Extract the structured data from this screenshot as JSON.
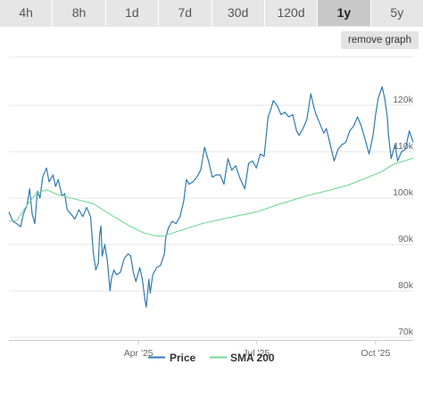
{
  "tabs": [
    {
      "label": "4h",
      "active": false
    },
    {
      "label": "8h",
      "active": false
    },
    {
      "label": "1d",
      "active": false
    },
    {
      "label": "7d",
      "active": false
    },
    {
      "label": "30d",
      "active": false
    },
    {
      "label": "120d",
      "active": false
    },
    {
      "label": "1y",
      "active": true
    },
    {
      "label": "5y",
      "active": false
    }
  ],
  "remove_graph_label": "remove graph",
  "colors": {
    "price": "#2f7ab0",
    "sma": "#72d897",
    "active_tab_bg": "#c8c8c8",
    "tab_bg": "#e6e6e6"
  },
  "chart_data": {
    "type": "line",
    "title": "",
    "xlabel": "",
    "ylabel": "",
    "x_range": [
      "2024-12-22",
      "2025-10-30"
    ],
    "ylim": [
      70,
      125
    ],
    "grid": true,
    "y_ticks": [
      {
        "value": 120,
        "label": "120k"
      },
      {
        "value": 110,
        "label": "110k"
      },
      {
        "value": 100,
        "label": "100k"
      },
      {
        "value": 90,
        "label": "90k"
      },
      {
        "value": 80,
        "label": "80k"
      },
      {
        "value": 70,
        "label": "70k"
      }
    ],
    "x_ticks": [
      {
        "date": "2025-04-01",
        "label": "Apr '25"
      },
      {
        "date": "2025-07-01",
        "label": "Jul '25"
      },
      {
        "date": "2025-10-01",
        "label": "Oct '25"
      }
    ],
    "legend_position": "bottom-center",
    "series": [
      {
        "name": "Price",
        "color": "#2f7ab0",
        "x": [
          "2024-12-22",
          "2024-12-25",
          "2024-12-28",
          "2024-12-31",
          "2025-01-02",
          "2025-01-05",
          "2025-01-07",
          "2025-01-09",
          "2025-01-11",
          "2025-01-13",
          "2025-01-15",
          "2025-01-17",
          "2025-01-20",
          "2025-01-22",
          "2025-01-25",
          "2025-01-27",
          "2025-01-29",
          "2025-02-01",
          "2025-02-03",
          "2025-02-05",
          "2025-02-08",
          "2025-02-11",
          "2025-02-14",
          "2025-02-17",
          "2025-02-20",
          "2025-02-23",
          "2025-02-25",
          "2025-02-27",
          "2025-03-01",
          "2025-03-02",
          "2025-03-03",
          "2025-03-04",
          "2025-03-06",
          "2025-03-08",
          "2025-03-10",
          "2025-03-11",
          "2025-03-13",
          "2025-03-15",
          "2025-03-18",
          "2025-03-21",
          "2025-03-24",
          "2025-03-26",
          "2025-03-28",
          "2025-03-30",
          "2025-04-02",
          "2025-04-04",
          "2025-04-06",
          "2025-04-07",
          "2025-04-09",
          "2025-04-10",
          "2025-04-12",
          "2025-04-15",
          "2025-04-18",
          "2025-04-21",
          "2025-04-22",
          "2025-04-24",
          "2025-04-27",
          "2025-04-30",
          "2025-05-03",
          "2025-05-06",
          "2025-05-08",
          "2025-05-10",
          "2025-05-13",
          "2025-05-16",
          "2025-05-19",
          "2025-05-22",
          "2025-05-25",
          "2025-05-28",
          "2025-05-31",
          "2025-06-03",
          "2025-06-06",
          "2025-06-09",
          "2025-06-12",
          "2025-06-15",
          "2025-06-18",
          "2025-06-22",
          "2025-06-25",
          "2025-06-28",
          "2025-07-01",
          "2025-07-04",
          "2025-07-07",
          "2025-07-10",
          "2025-07-12",
          "2025-07-14",
          "2025-07-17",
          "2025-07-20",
          "2025-07-23",
          "2025-07-26",
          "2025-07-29",
          "2025-08-01",
          "2025-08-03",
          "2025-08-06",
          "2025-08-09",
          "2025-08-12",
          "2025-08-14",
          "2025-08-16",
          "2025-08-19",
          "2025-08-22",
          "2025-08-24",
          "2025-08-27",
          "2025-08-30",
          "2025-09-02",
          "2025-09-05",
          "2025-09-08",
          "2025-09-11",
          "2025-09-14",
          "2025-09-17",
          "2025-09-20",
          "2025-09-23",
          "2025-09-26",
          "2025-09-29",
          "2025-10-01",
          "2025-10-03",
          "2025-10-06",
          "2025-10-08",
          "2025-10-10",
          "2025-10-11",
          "2025-10-13",
          "2025-10-16",
          "2025-10-18",
          "2025-10-21",
          "2025-10-24",
          "2025-10-27",
          "2025-10-30"
        ],
        "values": [
          97.0,
          95.0,
          94.5,
          93.8,
          96.5,
          98.5,
          102.0,
          96.5,
          94.5,
          101.5,
          100.0,
          104.5,
          106.5,
          103.5,
          105.0,
          102.5,
          104.0,
          100.5,
          101.0,
          97.5,
          96.5,
          95.5,
          97.5,
          96.0,
          98.0,
          96.0,
          88.5,
          84.5,
          86.0,
          92.0,
          94.0,
          87.5,
          90.0,
          86.5,
          80.0,
          82.5,
          84.5,
          83.5,
          84.0,
          87.0,
          88.0,
          87.5,
          84.0,
          82.0,
          85.0,
          82.5,
          78.0,
          76.5,
          82.5,
          79.5,
          83.5,
          85.0,
          85.5,
          88.0,
          91.5,
          93.5,
          95.0,
          94.5,
          96.0,
          99.5,
          104.0,
          103.0,
          103.5,
          104.5,
          106.0,
          111.0,
          108.0,
          104.5,
          105.0,
          105.0,
          103.0,
          108.5,
          106.0,
          107.0,
          104.5,
          102.0,
          107.5,
          108.0,
          106.5,
          109.5,
          109.0,
          117.5,
          119.0,
          121.0,
          120.0,
          118.0,
          118.5,
          117.5,
          118.0,
          114.5,
          113.5,
          115.0,
          117.0,
          122.5,
          120.0,
          118.0,
          116.0,
          114.0,
          115.0,
          111.5,
          108.0,
          110.5,
          111.5,
          112.0,
          114.5,
          115.5,
          117.5,
          115.5,
          112.5,
          109.5,
          113.5,
          118.0,
          121.5,
          124.0,
          121.5,
          117.5,
          113.5,
          108.5,
          111.5,
          108.0,
          110.0,
          110.5,
          114.5,
          112.0
        ]
      },
      {
        "name": "SMA 200",
        "color": "#72d897",
        "x": [
          "2024-12-22",
          "2024-12-28",
          "2025-01-05",
          "2025-01-12",
          "2025-01-20",
          "2025-01-28",
          "2025-02-05",
          "2025-02-14",
          "2025-02-25",
          "2025-03-10",
          "2025-03-25",
          "2025-04-05",
          "2025-04-15",
          "2025-04-20",
          "2025-05-01",
          "2025-05-20",
          "2025-06-10",
          "2025-07-01",
          "2025-07-20",
          "2025-08-10",
          "2025-08-25",
          "2025-09-10",
          "2025-09-25",
          "2025-10-05",
          "2025-10-15",
          "2025-10-30"
        ],
        "values": [
          95.0,
          95.2,
          98.5,
          101.0,
          101.8,
          100.8,
          100.2,
          99.6,
          98.8,
          96.5,
          94.0,
          92.5,
          91.8,
          91.8,
          92.8,
          94.5,
          95.8,
          97.0,
          98.8,
          100.6,
          101.6,
          102.8,
          104.5,
          105.6,
          107.3,
          108.6
        ]
      }
    ]
  }
}
